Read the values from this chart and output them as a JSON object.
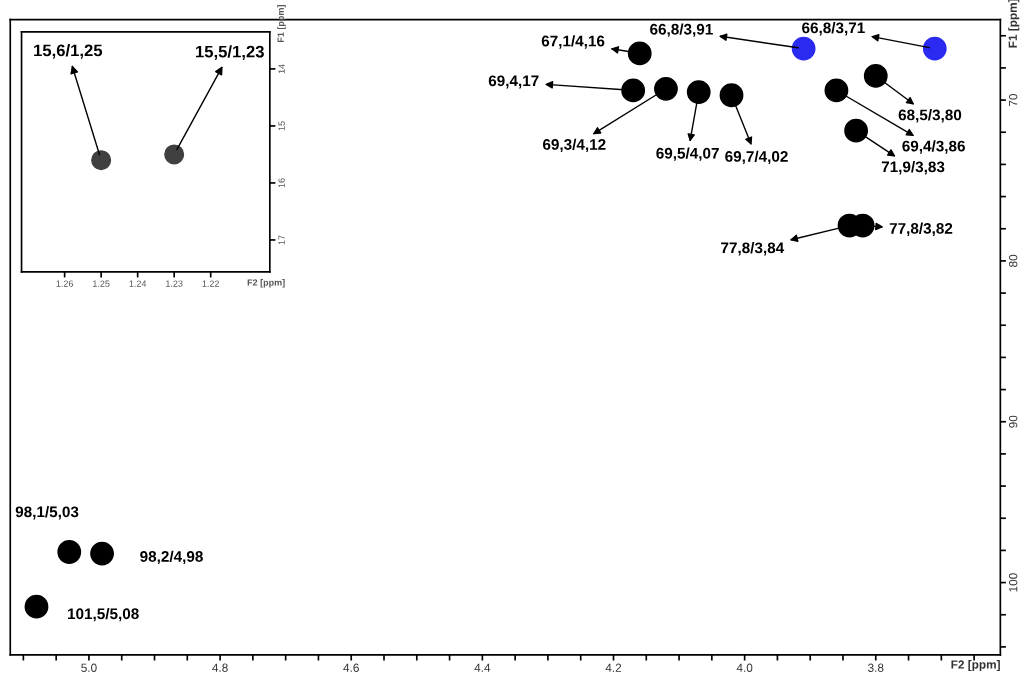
{
  "chart_data": [
    {
      "type": "scatter",
      "xlabel": "F2 [ppm]",
      "ylabel": "F1 [ppm]",
      "marker": "circle",
      "grid": false,
      "legend": false,
      "xlim": [
        5.12,
        3.61
      ],
      "ylim": [
        104.5,
        65
      ],
      "xticks": [
        {
          "value": 5.1,
          "label": null
        },
        {
          "value": 5.05,
          "label": null
        },
        {
          "value": 5.0,
          "label": "5.0"
        },
        {
          "value": 4.95,
          "label": null
        },
        {
          "value": 4.9,
          "label": null
        },
        {
          "value": 4.85,
          "label": null
        },
        {
          "value": 4.8,
          "label": "4.8"
        },
        {
          "value": 4.75,
          "label": null
        },
        {
          "value": 4.7,
          "label": null
        },
        {
          "value": 4.65,
          "label": null
        },
        {
          "value": 4.6,
          "label": "4.6"
        },
        {
          "value": 4.55,
          "label": null
        },
        {
          "value": 4.5,
          "label": null
        },
        {
          "value": 4.45,
          "label": null
        },
        {
          "value": 4.4,
          "label": "4.4"
        },
        {
          "value": 4.35,
          "label": null
        },
        {
          "value": 4.3,
          "label": null
        },
        {
          "value": 4.25,
          "label": null
        },
        {
          "value": 4.2,
          "label": "4.2"
        },
        {
          "value": 4.15,
          "label": null
        },
        {
          "value": 4.1,
          "label": null
        },
        {
          "value": 4.05,
          "label": null
        },
        {
          "value": 4.0,
          "label": "4.0"
        },
        {
          "value": 3.95,
          "label": null
        },
        {
          "value": 3.9,
          "label": null
        },
        {
          "value": 3.85,
          "label": null
        },
        {
          "value": 3.8,
          "label": "3.8"
        },
        {
          "value": 3.75,
          "label": null
        },
        {
          "value": 3.7,
          "label": null
        },
        {
          "value": 3.65,
          "label": null
        }
      ],
      "yticks": [
        {
          "value": 66,
          "label": null
        },
        {
          "value": 68,
          "label": null
        },
        70,
        {
          "value": 72,
          "label": null
        },
        {
          "value": 74,
          "label": null
        },
        {
          "value": 76,
          "label": null
        },
        {
          "value": 78,
          "label": null
        },
        80,
        {
          "value": 82,
          "label": null
        },
        {
          "value": 84,
          "label": null
        },
        {
          "value": 86,
          "label": null
        },
        {
          "value": 88,
          "label": null
        },
        90,
        {
          "value": 92,
          "label": null
        },
        {
          "value": 94,
          "label": null
        },
        {
          "value": 96,
          "label": null
        },
        {
          "value": 98,
          "label": null
        },
        100,
        {
          "value": 102,
          "label": null
        },
        {
          "value": 104,
          "label": null
        }
      ],
      "series": [
        {
          "color": "#000000",
          "x": [
            4.16,
            4.17,
            4.12,
            4.07,
            4.02,
            3.8,
            3.86,
            3.83,
            3.82,
            3.84,
            5.03,
            4.98,
            5.08
          ],
          "values": [
            67.1,
            69.4,
            69.3,
            69.5,
            69.7,
            68.5,
            69.4,
            71.9,
            77.8,
            77.8,
            98.1,
            98.2,
            101.5
          ],
          "value_labels": [
            "67,1/4,16",
            "69,4,17",
            "69,3/4,12",
            "69,5/4,07",
            "69,7/4,02",
            "68,5/3,80",
            "69,4/3,86",
            "71,9/3,83",
            "77,8/3,82",
            "77,8/3,84",
            "98,1/5,03",
            "98,2/4,98",
            "101,5/5,08"
          ]
        },
        {
          "color": "#2a2af0",
          "x": [
            3.91,
            3.71
          ],
          "values": [
            66.8,
            66.8
          ],
          "value_labels": [
            "66,8/3,91",
            "66,8/3,71"
          ]
        }
      ]
    },
    {
      "type": "scatter",
      "xlabel": "F2 [ppm]",
      "ylabel": "F1 [ppm]",
      "marker": "circle",
      "grid": false,
      "legend": false,
      "xlim": [
        1.2718,
        1.2038
      ],
      "ylim": [
        17.56,
        13.35
      ],
      "xticks": [
        1.26,
        1.25,
        1.24,
        1.23,
        1.22
      ],
      "yticks": [
        14,
        15,
        16,
        17
      ],
      "series": [
        {
          "color": "#404040",
          "x": [
            1.25,
            1.23
          ],
          "values": [
            15.6,
            15.5
          ],
          "value_labels": [
            "15,6/1,25",
            "15,5/1,23"
          ]
        }
      ]
    }
  ]
}
